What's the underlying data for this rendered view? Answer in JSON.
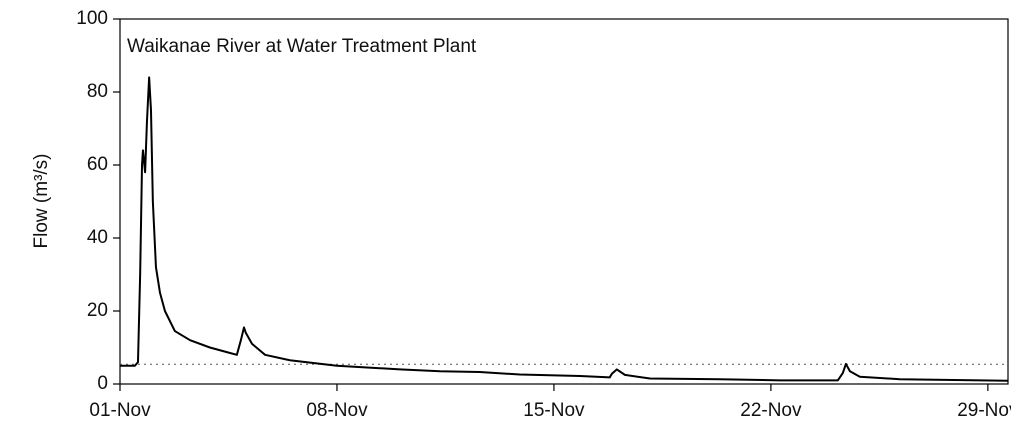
{
  "chart_data": {
    "type": "line",
    "annotation": "Waikanae River at Water Treatment Plant",
    "ylabel": "Flow (m³/s)",
    "xlim": [
      0,
      28.65
    ],
    "ylim": [
      0,
      100
    ],
    "xticks": [
      {
        "value": 0,
        "label": "01-Nov"
      },
      {
        "value": 7,
        "label": "08-Nov"
      },
      {
        "value": 14,
        "label": "15-Nov"
      },
      {
        "value": 21,
        "label": "22-Nov"
      },
      {
        "value": 28,
        "label": "29-Nov"
      }
    ],
    "yticks": [
      0,
      20,
      40,
      60,
      80,
      100
    ],
    "reference_line": 5.4,
    "grid": false,
    "series": [
      {
        "color": "#000000",
        "x": [
          0,
          0.48,
          0.58,
          0.65,
          0.71,
          0.74,
          0.81,
          0.87,
          0.94,
          1.0,
          1.06,
          1.16,
          1.29,
          1.45,
          1.77,
          2.26,
          2.9,
          3.55,
          3.77,
          3.9,
          4.0,
          4.06,
          4.26,
          4.68,
          5.48,
          7,
          9.03,
          10.32,
          11.6,
          12.9,
          14.84,
          15.8,
          15.87,
          16.03,
          16.29,
          17.1,
          19.35,
          21.3,
          23.16,
          23.32,
          23.42,
          23.55,
          23.87,
          25.16,
          28.65
        ],
        "values": [
          5,
          5,
          6,
          30,
          60,
          64,
          58,
          72,
          84,
          75,
          50,
          32,
          25,
          20,
          14.5,
          12,
          10,
          8.5,
          8,
          12,
          15.5,
          14,
          11,
          8,
          6.5,
          5,
          4,
          3.5,
          3.3,
          2.6,
          2.2,
          1.8,
          2.8,
          4,
          2.5,
          1.5,
          1.3,
          1,
          1,
          3,
          5.5,
          3.5,
          2,
          1.3,
          0.9
        ]
      }
    ]
  }
}
